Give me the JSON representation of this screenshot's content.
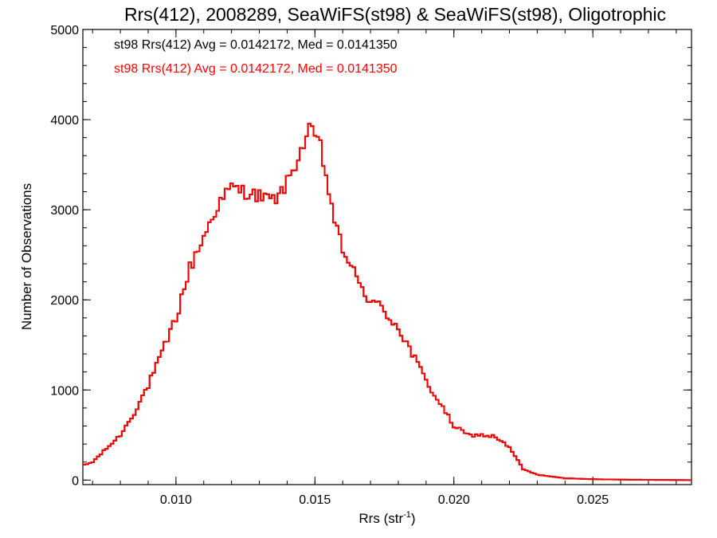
{
  "chart_data": {
    "type": "line",
    "style": "histogram-step",
    "title": "Rrs(412), 2008289, SeaWiFS(st98) & SeaWiFS(st98), Oligotrophic",
    "xlabel_main": "Rrs (str",
    "xlabel_sup": "-1",
    "xlabel_close": ")",
    "ylabel": "Number of Observations",
    "xlim": [
      0.00665,
      0.02855
    ],
    "ylim": [
      -50,
      5000
    ],
    "xticks": [
      0.01,
      0.015,
      0.02,
      0.025
    ],
    "xtick_labels": [
      "0.010",
      "0.015",
      "0.020",
      "0.025"
    ],
    "yticks": [
      0,
      1000,
      2000,
      3000,
      4000,
      5000
    ],
    "ytick_labels": [
      "0",
      "1000",
      "2000",
      "3000",
      "4000",
      "5000"
    ],
    "x_minor_step": 0.001,
    "y_minor_step": 200,
    "grid": false,
    "legend_position": "top-left",
    "colors": {
      "black": "#000000",
      "red": "#ff0000"
    },
    "legend": [
      {
        "text": "st98 Rrs(412) Avg = 0.0142172, Med = 0.0141350",
        "color": "#000000"
      },
      {
        "text": "st98 Rrs(412) Avg = 0.0142172, Med = 0.0141350",
        "color": "#ff0000"
      }
    ],
    "series": [
      {
        "name": "st98 Rrs(412)",
        "color": "#000000",
        "x": [],
        "values": []
      },
      {
        "name": "st98 Rrs(412)",
        "color": "#ff0000",
        "x": [],
        "values": []
      }
    ],
    "anchor_points": [
      [
        0.00665,
        160
      ],
      [
        0.007,
        200
      ],
      [
        0.0075,
        350
      ],
      [
        0.008,
        500
      ],
      [
        0.0085,
        750
      ],
      [
        0.009,
        1050
      ],
      [
        0.0095,
        1400
      ],
      [
        0.01,
        1800
      ],
      [
        0.0105,
        2350
      ],
      [
        0.011,
        2700
      ],
      [
        0.0115,
        3050
      ],
      [
        0.012,
        3250
      ],
      [
        0.0125,
        3200
      ],
      [
        0.013,
        3150
      ],
      [
        0.0135,
        3100
      ],
      [
        0.0138,
        3200
      ],
      [
        0.014,
        3300
      ],
      [
        0.0145,
        3650
      ],
      [
        0.0148,
        3880
      ],
      [
        0.015,
        3820
      ],
      [
        0.0152,
        3700
      ],
      [
        0.0155,
        3200
      ],
      [
        0.0158,
        2750
      ],
      [
        0.016,
        2550
      ],
      [
        0.0163,
        2400
      ],
      [
        0.0165,
        2200
      ],
      [
        0.017,
        2000
      ],
      [
        0.0175,
        1870
      ],
      [
        0.018,
        1700
      ],
      [
        0.0185,
        1400
      ],
      [
        0.019,
        1100
      ],
      [
        0.0195,
        850
      ],
      [
        0.02,
        600
      ],
      [
        0.0205,
        500
      ],
      [
        0.021,
        500
      ],
      [
        0.0215,
        480
      ],
      [
        0.022,
        360
      ],
      [
        0.0225,
        120
      ],
      [
        0.023,
        60
      ],
      [
        0.024,
        20
      ],
      [
        0.025,
        10
      ],
      [
        0.026,
        5
      ],
      [
        0.02855,
        0
      ]
    ],
    "bin_width": 0.0001
  }
}
